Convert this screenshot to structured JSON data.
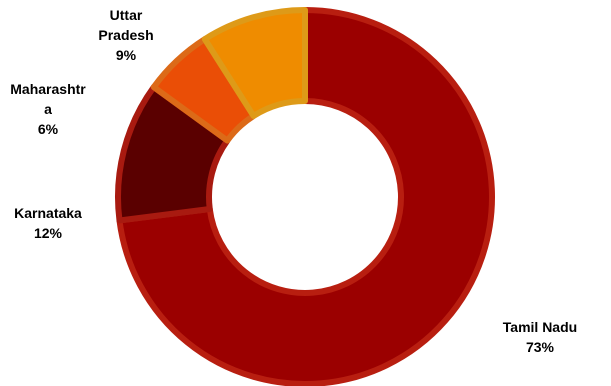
{
  "chart_data": {
    "type": "pie",
    "variant": "donut",
    "title": "",
    "legend": "none",
    "slices": [
      {
        "label": [
          "Tamil Nadu"
        ],
        "pct_label": "73%",
        "value": 73,
        "color": "#9b0000",
        "edge": "#b81e10"
      },
      {
        "label": [
          "Karnataka"
        ],
        "pct_label": "12%",
        "value": 12,
        "color": "#5a0000",
        "edge": "#a81a10"
      },
      {
        "label": [
          "Maharashtr",
          "a"
        ],
        "pct_label": "6%",
        "value": 6,
        "color": "#ea4e06",
        "edge": "#dc6a18"
      },
      {
        "label": [
          "Uttar",
          "Pradesh"
        ],
        "pct_label": "9%",
        "value": 9,
        "color": "#ef8c00",
        "edge": "#de9a18"
      }
    ]
  }
}
